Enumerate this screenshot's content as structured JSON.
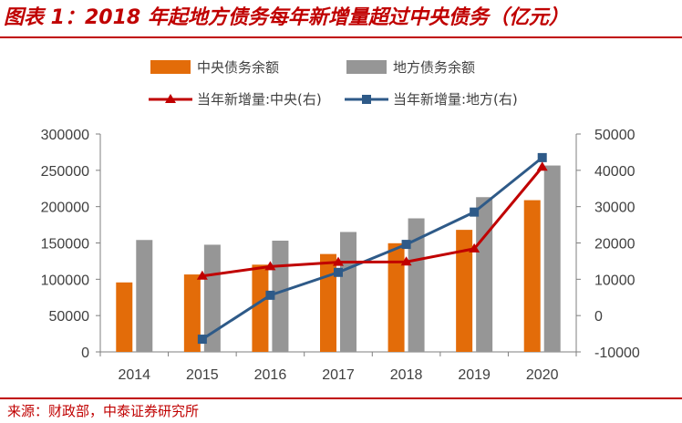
{
  "header": {
    "title": "图表 1：2018 年起地方债务每年新增量超过中央债务（亿元）"
  },
  "footer": {
    "source": "来源：财政部，中泰证券研究所"
  },
  "colors": {
    "central_bar": "#e36c09",
    "local_bar": "#969696",
    "central_line": "#c00000",
    "local_line": "#2e5a88",
    "title": "#c00000"
  },
  "chart_data": {
    "type": "bar",
    "categories": [
      "2014",
      "2015",
      "2016",
      "2017",
      "2018",
      "2019",
      "2020"
    ],
    "series": [
      {
        "name": "中央债务余额",
        "type": "bar",
        "axis": "left",
        "values": [
          95655,
          106600,
          120067,
          134770,
          149607,
          168038,
          208906
        ]
      },
      {
        "name": "地方债务余额",
        "type": "bar",
        "axis": "left",
        "values": [
          154074,
          147568,
          153164,
          165100,
          183862,
          213072,
          256615
        ]
      },
      {
        "name": "当年新增量:中央(右)",
        "type": "line",
        "axis": "right",
        "marker": "triangle",
        "values": [
          null,
          10900,
          13500,
          14700,
          14800,
          18400,
          40900
        ]
      },
      {
        "name": "当年新增量:地方(右)",
        "type": "line",
        "axis": "right",
        "marker": "square",
        "values": [
          null,
          -6500,
          5600,
          11900,
          19600,
          28500,
          43500
        ]
      }
    ],
    "y_left": {
      "min": 0,
      "max": 300000,
      "ticks": [
        "0",
        "50000",
        "100000",
        "150000",
        "200000",
        "250000",
        "300000"
      ]
    },
    "y_right": {
      "min": -10000,
      "max": 50000,
      "ticks": [
        "-10000",
        "0",
        "10000",
        "20000",
        "30000",
        "40000",
        "50000"
      ]
    },
    "grid": false,
    "legend_position": "top"
  }
}
